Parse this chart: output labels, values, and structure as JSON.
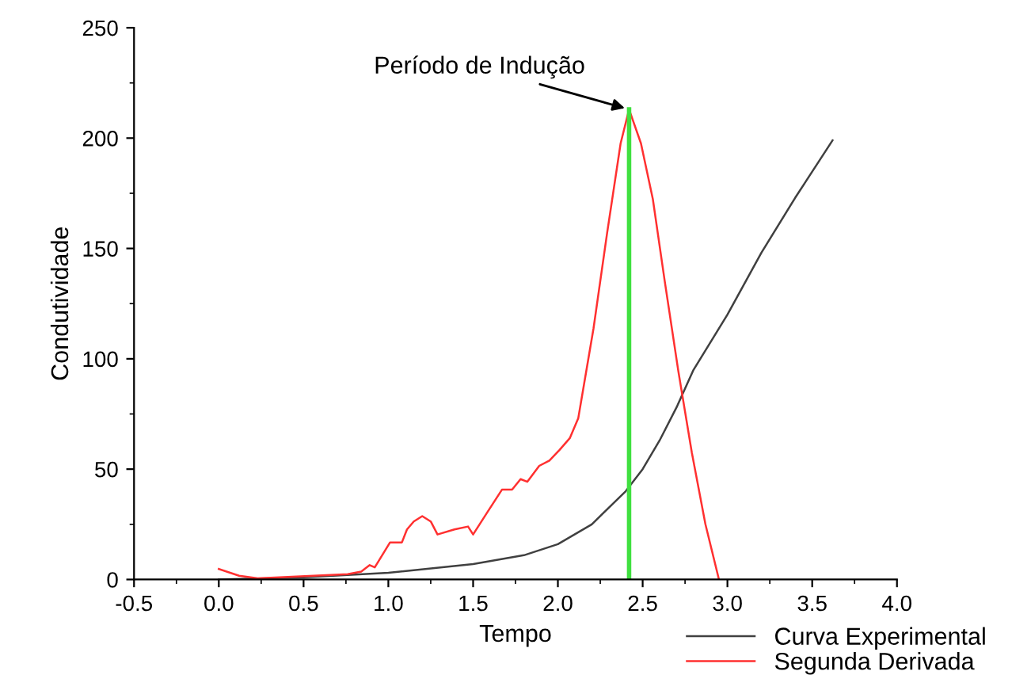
{
  "chart_data": {
    "type": "line",
    "xlabel": "Tempo",
    "ylabel": "Condutividade",
    "xlim": [
      -0.5,
      4.0
    ],
    "xticks": [
      -0.5,
      {
        "value": 0,
        "label": "0.0"
      },
      0.5,
      {
        "value": 1,
        "label": "1.0"
      },
      1.5,
      {
        "value": 2,
        "label": "2.0"
      },
      2.5,
      {
        "value": 3,
        "label": "3.0"
      },
      3.5,
      {
        "value": 4,
        "label": "4.0"
      }
    ],
    "ylim": [
      0,
      250
    ],
    "yticks": [
      0,
      50,
      100,
      150,
      200,
      250
    ],
    "grid": false,
    "legend": "bottom right",
    "marker": "none",
    "line_style": "solid",
    "series": [
      {
        "name": "Curva Experimental",
        "color": "#404040",
        "x": [
          0.0,
          0.5,
          1.0,
          1.5,
          1.8,
          2.0,
          2.2,
          2.4,
          2.5,
          2.6,
          2.7,
          2.8,
          3.0,
          3.2,
          3.4,
          3.62
        ],
        "values": [
          0,
          1,
          3,
          7,
          11,
          16,
          25,
          40,
          50,
          63,
          78,
          95,
          120,
          148,
          173,
          199
        ]
      },
      {
        "name": "Segunda Derivada",
        "color": "#ff3030",
        "x": [
          0.0,
          0.12,
          0.23,
          0.76,
          0.84,
          0.89,
          0.92,
          1.01,
          1.08,
          1.11,
          1.15,
          1.2,
          1.25,
          1.29,
          1.39,
          1.47,
          1.5,
          1.58,
          1.67,
          1.73,
          1.78,
          1.82,
          1.89,
          1.95,
          2.01,
          2.07,
          2.12,
          2.21,
          2.29,
          2.37,
          2.42,
          2.49,
          2.56,
          2.63,
          2.71,
          2.79,
          2.87,
          2.95
        ],
        "values": [
          4.8,
          1.7,
          0.5,
          2.4,
          3.6,
          6.5,
          5.5,
          16.8,
          16.8,
          22.7,
          26.3,
          28.7,
          26.3,
          20.4,
          22.7,
          24,
          20.4,
          30,
          40.7,
          40.7,
          45.5,
          44.3,
          51.5,
          53.9,
          58.7,
          64,
          73,
          113.7,
          156.8,
          197.6,
          213,
          197.6,
          172.4,
          135.3,
          94.6,
          57.5,
          25.1,
          0
        ]
      }
    ],
    "ref_lines": [
      {
        "axis": "x",
        "value": 2.42,
        "color": "#40e040",
        "line_style": "solid"
      }
    ],
    "annotations": [
      {
        "text": "Período de Indução",
        "x": 2.42,
        "y": 213
      }
    ]
  }
}
